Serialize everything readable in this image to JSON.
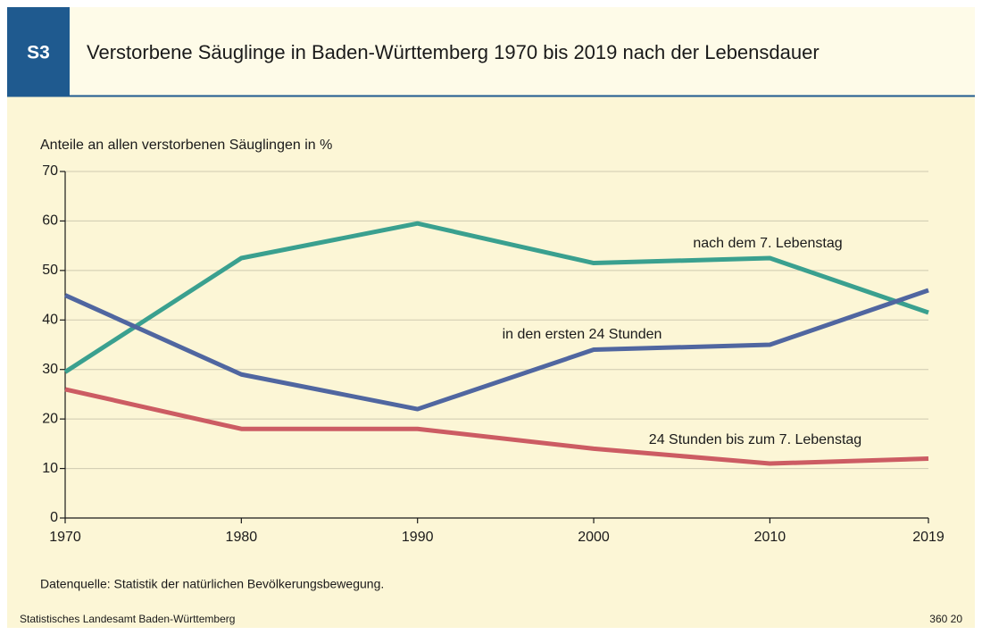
{
  "badge": "S3",
  "source": "Datenquelle: Statistik der natürlichen Bevölkerungsbewegung.",
  "footer": {
    "left": "Statistisches Landesamt Baden-Württemberg",
    "right": "360 20"
  },
  "chart_data": {
    "type": "line",
    "title": "Verstorbene Säuglinge in Baden-Württemberg 1970 bis 2019 nach der Lebensdauer",
    "y_label": "Anteile an allen verstorbenen Säuglingen in %",
    "x": [
      1970,
      1980,
      1990,
      2000,
      2010,
      2019
    ],
    "xlim": [
      1970,
      2019
    ],
    "xticks": [
      1970,
      1980,
      1990,
      2000,
      2010,
      2019
    ],
    "ylim": [
      0,
      70
    ],
    "yticks": [
      0,
      10,
      20,
      30,
      40,
      50,
      60,
      70
    ],
    "grid": true,
    "series": [
      {
        "name": "nach dem 7. Lebenstag",
        "color": "#3aa08f",
        "values": [
          29.5,
          52.5,
          59.5,
          51.5,
          52.5,
          41.5
        ]
      },
      {
        "name": "in den ersten 24 Stunden",
        "color": "#5066a0",
        "values": [
          45,
          29,
          22,
          34,
          35,
          46
        ]
      },
      {
        "name": "24 Stunden bis zum 7. Lebenstag",
        "color": "#cc5c63",
        "values": [
          26,
          18,
          18,
          14,
          11,
          12
        ]
      }
    ]
  }
}
